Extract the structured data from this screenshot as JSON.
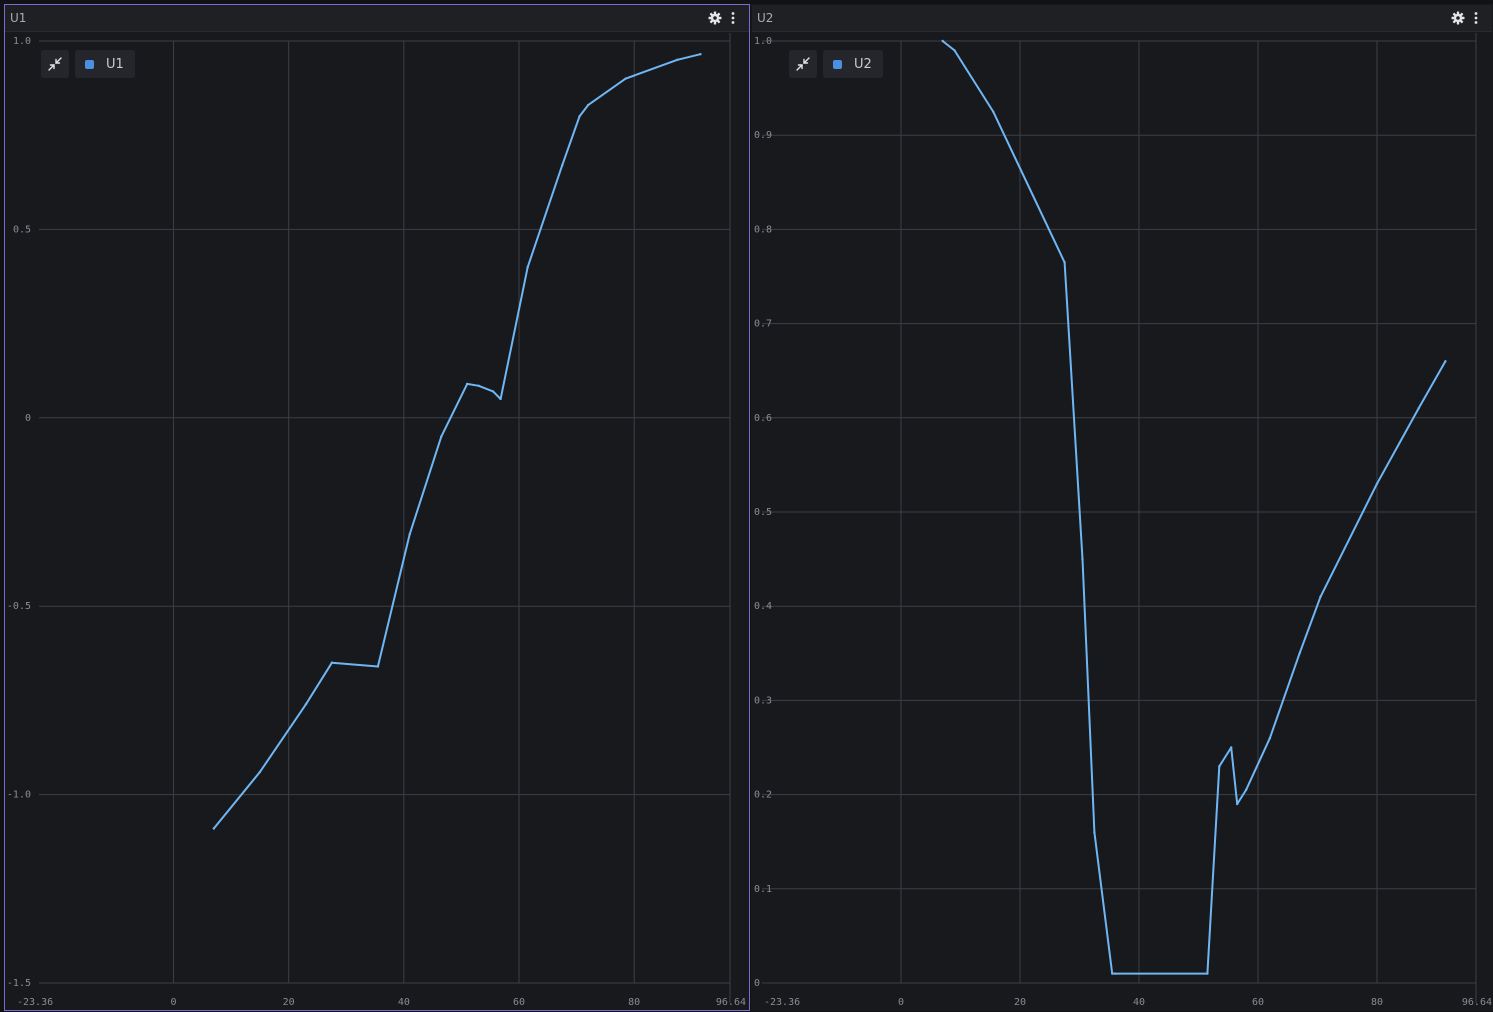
{
  "panels": [
    {
      "title": "U1",
      "legend_label": "U1",
      "icons": {
        "settings": "gear-icon",
        "menu": "kebab-menu-icon",
        "collapse": "collapse-icon"
      }
    },
    {
      "title": "U2",
      "legend_label": "U2",
      "icons": {
        "settings": "gear-icon",
        "menu": "kebab-menu-icon",
        "collapse": "collapse-icon"
      }
    }
  ],
  "colors": {
    "line": "#6fb6f5",
    "legend_swatch": "#4a90e2",
    "active_border": "#7b6ccf",
    "grid": "#3e3f45"
  },
  "chart_data": [
    {
      "type": "line",
      "title": "",
      "series": [
        {
          "name": "U1",
          "x": [
            7.0,
            15.0,
            23.0,
            27.5,
            35.5,
            41.0,
            46.5,
            51.0,
            53.0,
            55.5,
            56.8,
            61.5,
            67.5,
            70.5,
            72.0,
            78.5,
            87.5,
            91.5
          ],
          "y": [
            -1.09,
            -0.94,
            -0.76,
            -0.65,
            -0.66,
            -0.31,
            -0.05,
            0.09,
            0.085,
            0.07,
            0.05,
            0.4,
            0.67,
            0.8,
            0.83,
            0.9,
            0.95,
            0.965
          ]
        }
      ],
      "xlim": [
        -23.36,
        96.64
      ],
      "ylim": [
        -1.5,
        1.0
      ],
      "x_ticks": [
        -23.36,
        0,
        20,
        40,
        60,
        80,
        96.64
      ],
      "x_tick_labels": [
        "-23.36",
        "0",
        "20",
        "40",
        "60",
        "80",
        "96.64"
      ],
      "y_ticks": [
        1.0,
        0.5,
        0,
        -0.5,
        -1.0,
        -1.5
      ],
      "y_tick_labels": [
        "1.0",
        "0.5",
        "0",
        "-0.5",
        "-1.0",
        "-1.5"
      ],
      "grid": true,
      "legend": "top-left"
    },
    {
      "type": "line",
      "title": "",
      "series": [
        {
          "name": "U2",
          "x": [
            7.0,
            9.0,
            15.5,
            27.5,
            30.5,
            32.5,
            35.5,
            36.0,
            51.5,
            53.5,
            55.5,
            56.5,
            58.0,
            62.0,
            67.0,
            70.5,
            80.0,
            87.0,
            91.5
          ],
          "y": [
            1.0,
            0.99,
            0.925,
            0.765,
            0.45,
            0.16,
            0.01,
            0.01,
            0.01,
            0.23,
            0.25,
            0.19,
            0.205,
            0.26,
            0.35,
            0.41,
            0.53,
            0.61,
            0.66
          ]
        }
      ],
      "xlim": [
        -23.36,
        96.64
      ],
      "ylim": [
        0,
        1.0
      ],
      "x_ticks": [
        -23.36,
        0,
        20,
        40,
        60,
        80,
        96.64
      ],
      "x_tick_labels": [
        "-23.36",
        "0",
        "20",
        "40",
        "60",
        "80",
        "96.64"
      ],
      "y_ticks": [
        1.0,
        0.9,
        0.8,
        0.7,
        0.6,
        0.5,
        0.4,
        0.3,
        0.2,
        0.1,
        0
      ],
      "y_tick_labels": [
        "1.0",
        "0.9",
        "0.8",
        "0.7",
        "0.6",
        "0.5",
        "0.4",
        "0.3",
        "0.2",
        "0.1",
        "0"
      ],
      "grid": true,
      "legend": "top-left"
    }
  ]
}
